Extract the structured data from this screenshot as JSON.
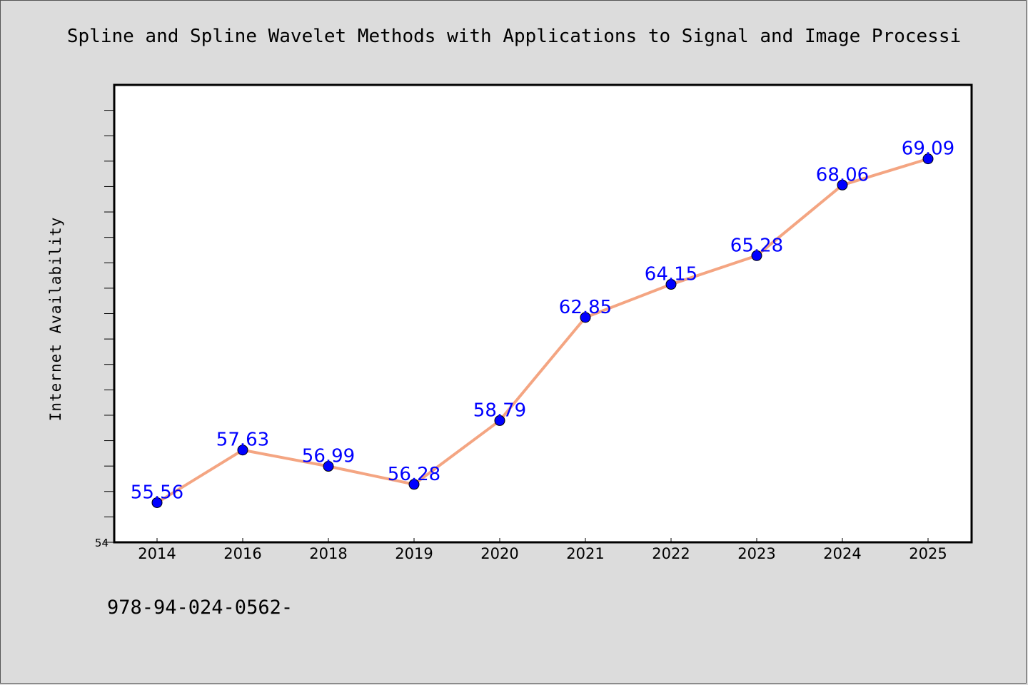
{
  "title": "Spline and Spline Wavelet Methods with Applications to Signal and Image Processi",
  "footnote": "978-94-024-0562-",
  "colors": {
    "background": "#dcdcdc",
    "plot_background": "#ffffff",
    "line": "#f4a582",
    "marker": "#0000ff",
    "label": "#0000ff"
  },
  "chart_data": {
    "type": "line",
    "title": "Spline and Spline Wavelet Methods with Applications to Signal and Image Processi",
    "xlabel": "",
    "ylabel": "Internet Availability",
    "categories": [
      "2014",
      "2016",
      "2018",
      "2019",
      "2020",
      "2021",
      "2022",
      "2023",
      "2024",
      "2025"
    ],
    "series": [
      {
        "values": [
          55.56,
          57.63,
          56.99,
          56.28,
          58.79,
          62.85,
          64.15,
          65.28,
          68.06,
          69.09
        ],
        "labels": [
          "55.56",
          "57.63",
          "56.99",
          "56.28",
          "58.79",
          "62.85",
          "64.15",
          "65.28",
          "68.06",
          "69.09"
        ]
      }
    ],
    "ylim": [
      54,
      72
    ],
    "y_tick_labels": [
      "54"
    ],
    "grid": false,
    "legend": "none",
    "markers": true
  }
}
